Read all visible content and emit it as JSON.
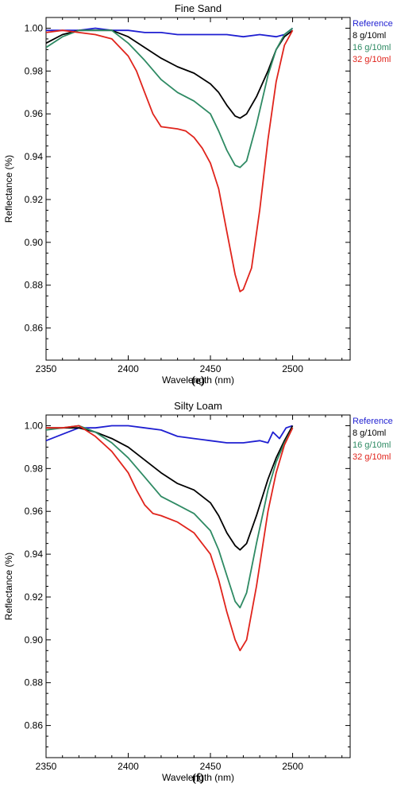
{
  "chart_data": [
    {
      "type": "line",
      "title": "Fine Sand",
      "caption": "(e)",
      "xlabel": "Wavelength (nm)",
      "ylabel": "Reflectance (%)",
      "xlim": [
        2350,
        2535
      ],
      "ylim": [
        0.845,
        1.005
      ],
      "xticks": [
        "2350",
        "2400",
        "2450",
        "2500"
      ],
      "yticks": [
        "0.86",
        "0.88",
        "0.90",
        "0.92",
        "0.94",
        "0.96",
        "0.98",
        "1.00"
      ],
      "grid": false,
      "legend_position": "top-right, outside plot",
      "series": [
        {
          "name": "Reference",
          "color": "#1f1fd1",
          "x": [
            2350,
            2360,
            2370,
            2380,
            2390,
            2400,
            2410,
            2420,
            2430,
            2440,
            2450,
            2460,
            2470,
            2480,
            2490,
            2495,
            2500
          ],
          "y": [
            0.999,
            0.999,
            0.999,
            1.0,
            0.999,
            0.999,
            0.998,
            0.998,
            0.997,
            0.997,
            0.997,
            0.997,
            0.996,
            0.997,
            0.996,
            0.997,
            1.0
          ]
        },
        {
          "name": "8 g/10ml",
          "color": "#000000",
          "x": [
            2350,
            2360,
            2370,
            2380,
            2390,
            2400,
            2410,
            2420,
            2430,
            2440,
            2450,
            2455,
            2460,
            2465,
            2468,
            2472,
            2478,
            2485,
            2490,
            2495,
            2500
          ],
          "y": [
            0.993,
            0.997,
            0.999,
            0.999,
            0.999,
            0.996,
            0.991,
            0.986,
            0.982,
            0.979,
            0.974,
            0.97,
            0.964,
            0.959,
            0.958,
            0.96,
            0.968,
            0.98,
            0.99,
            0.996,
            0.999
          ]
        },
        {
          "name": "16 g/10ml",
          "color": "#2e8a63",
          "x": [
            2350,
            2360,
            2370,
            2380,
            2390,
            2400,
            2410,
            2420,
            2430,
            2440,
            2450,
            2455,
            2460,
            2465,
            2468,
            2472,
            2478,
            2485,
            2490,
            2495,
            2500
          ],
          "y": [
            0.991,
            0.996,
            0.999,
            0.999,
            0.999,
            0.993,
            0.985,
            0.976,
            0.97,
            0.966,
            0.96,
            0.952,
            0.943,
            0.936,
            0.935,
            0.938,
            0.955,
            0.978,
            0.99,
            0.997,
            1.0
          ]
        },
        {
          "name": "32 g/10ml",
          "color": "#e0241c",
          "x": [
            2350,
            2360,
            2370,
            2380,
            2390,
            2400,
            2405,
            2410,
            2415,
            2420,
            2430,
            2435,
            2440,
            2445,
            2450,
            2455,
            2460,
            2465,
            2468,
            2470,
            2475,
            2480,
            2485,
            2490,
            2495,
            2500
          ],
          "y": [
            0.998,
            0.999,
            0.998,
            0.997,
            0.995,
            0.987,
            0.98,
            0.97,
            0.96,
            0.954,
            0.953,
            0.952,
            0.949,
            0.944,
            0.937,
            0.925,
            0.905,
            0.885,
            0.877,
            0.878,
            0.888,
            0.915,
            0.948,
            0.975,
            0.992,
            0.999
          ]
        }
      ]
    },
    {
      "type": "line",
      "title": "Silty Loam",
      "caption": "(f)",
      "xlabel": "Wavelength (nm)",
      "ylabel": "Reflectance (%)",
      "xlim": [
        2350,
        2535
      ],
      "ylim": [
        0.845,
        1.005
      ],
      "xticks": [
        "2350",
        "2400",
        "2450",
        "2500"
      ],
      "yticks": [
        "0.86",
        "0.88",
        "0.90",
        "0.92",
        "0.94",
        "0.96",
        "0.98",
        "1.00"
      ],
      "grid": false,
      "legend_position": "top-right, outside plot",
      "series": [
        {
          "name": "Reference",
          "color": "#1f1fd1",
          "x": [
            2350,
            2360,
            2370,
            2380,
            2390,
            2400,
            2410,
            2420,
            2430,
            2440,
            2450,
            2460,
            2470,
            2480,
            2485,
            2488,
            2492,
            2496,
            2500
          ],
          "y": [
            0.993,
            0.996,
            0.999,
            0.999,
            1.0,
            1.0,
            0.999,
            0.998,
            0.995,
            0.994,
            0.993,
            0.992,
            0.992,
            0.993,
            0.992,
            0.997,
            0.994,
            0.999,
            1.0
          ]
        },
        {
          "name": "8 g/10ml",
          "color": "#000000",
          "x": [
            2350,
            2360,
            2370,
            2380,
            2390,
            2400,
            2410,
            2420,
            2430,
            2440,
            2450,
            2455,
            2460,
            2465,
            2468,
            2472,
            2478,
            2485,
            2490,
            2495,
            2500
          ],
          "y": [
            0.999,
            0.999,
            0.999,
            0.997,
            0.994,
            0.99,
            0.984,
            0.978,
            0.973,
            0.97,
            0.964,
            0.958,
            0.95,
            0.944,
            0.942,
            0.945,
            0.958,
            0.975,
            0.985,
            0.993,
            1.0
          ]
        },
        {
          "name": "16 g/10ml",
          "color": "#2e8a63",
          "x": [
            2350,
            2360,
            2370,
            2380,
            2390,
            2400,
            2410,
            2420,
            2430,
            2440,
            2450,
            2455,
            2460,
            2465,
            2468,
            2472,
            2478,
            2485,
            2490,
            2495,
            2500
          ],
          "y": [
            0.998,
            0.999,
            1.0,
            0.997,
            0.992,
            0.985,
            0.976,
            0.967,
            0.963,
            0.959,
            0.951,
            0.942,
            0.93,
            0.918,
            0.915,
            0.922,
            0.945,
            0.97,
            0.983,
            0.992,
            0.999
          ]
        },
        {
          "name": "32 g/10ml",
          "color": "#e0241c",
          "x": [
            2350,
            2360,
            2370,
            2380,
            2390,
            2400,
            2405,
            2410,
            2415,
            2420,
            2430,
            2440,
            2450,
            2455,
            2460,
            2465,
            2468,
            2472,
            2478,
            2485,
            2490,
            2495,
            2500
          ],
          "y": [
            0.999,
            0.999,
            1.0,
            0.995,
            0.988,
            0.978,
            0.97,
            0.963,
            0.959,
            0.958,
            0.955,
            0.95,
            0.94,
            0.928,
            0.913,
            0.9,
            0.895,
            0.9,
            0.925,
            0.96,
            0.978,
            0.991,
            0.999
          ]
        }
      ]
    }
  ]
}
